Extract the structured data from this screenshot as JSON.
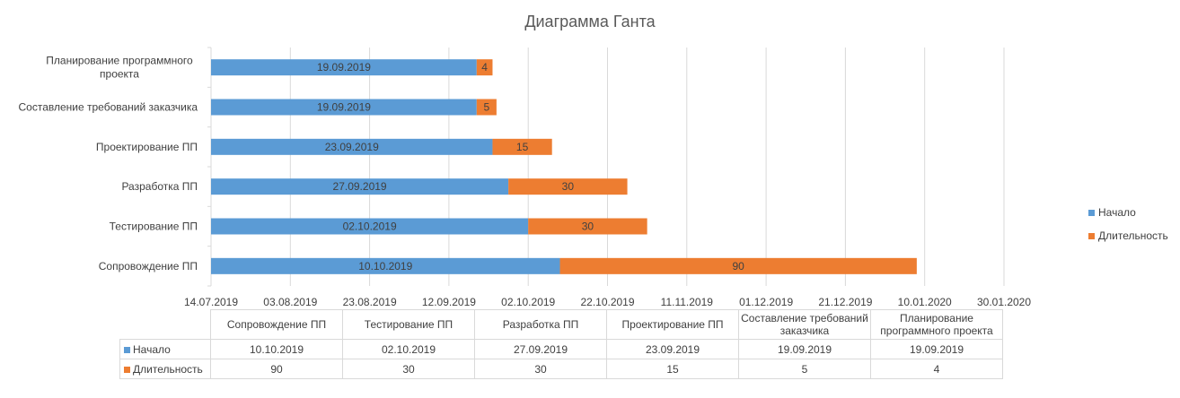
{
  "title": "Диаграмма Ганта",
  "colors": {
    "start": "#5b9bd5",
    "duration": "#ed7d31",
    "grid": "#d9d9d9",
    "text": "#404040"
  },
  "chart_data": {
    "type": "bar",
    "orientation": "horizontal",
    "stacked": true,
    "title": "Диаграмма Ганта",
    "categories": [
      "Сопровождение ПП",
      "Тестирование ПП",
      "Разработка ПП",
      "Проектирование ПП",
      "Составление требований заказчика",
      "Планирование программного проекта"
    ],
    "category_axis_labels": [
      "Сопровождение ПП",
      "Тестирование ПП",
      "Разработка ПП",
      "Проектирование ПП",
      "Составление требований заказчика",
      "Планирование программного\nпроекта"
    ],
    "series": [
      {
        "name": "Начало",
        "values": [
          "2019-10-10",
          "2019-10-02",
          "2019-09-27",
          "2019-09-23",
          "2019-09-19",
          "2019-09-19"
        ],
        "labels": [
          "10.10.2019",
          "02.10.2019",
          "27.09.2019",
          "23.09.2019",
          "19.09.2019",
          "19.09.2019"
        ]
      },
      {
        "name": "Длительность",
        "values": [
          90,
          30,
          30,
          15,
          5,
          4
        ]
      }
    ],
    "xlim": [
      "2019-07-14",
      "2020-01-30"
    ],
    "x_ticks": [
      "14.07.2019",
      "03.08.2019",
      "23.08.2019",
      "12.09.2019",
      "02.10.2019",
      "22.10.2019",
      "11.11.2019",
      "01.12.2019",
      "21.12.2019",
      "10.01.2020",
      "30.01.2020"
    ],
    "grid": true,
    "legend": "right"
  },
  "legend": {
    "start": "Начало",
    "duration": "Длительность"
  },
  "table": {
    "columns": [
      "Сопровождение ПП",
      "Тестирование ПП",
      "Разработка ПП",
      "Проектирование ПП",
      "Составление требований заказчика",
      "Планирование программного проекта"
    ],
    "rows": [
      {
        "label": "Начало",
        "values": [
          "10.10.2019",
          "02.10.2019",
          "27.09.2019",
          "23.09.2019",
          "19.09.2019",
          "19.09.2019"
        ]
      },
      {
        "label": "Длительность",
        "values": [
          "90",
          "30",
          "30",
          "15",
          "5",
          "4"
        ]
      }
    ]
  }
}
